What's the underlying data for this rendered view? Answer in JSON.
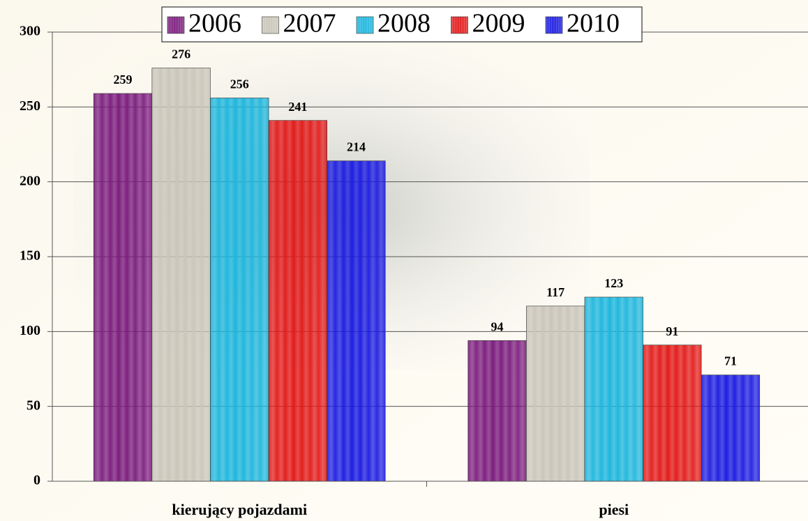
{
  "chart_data": {
    "type": "bar",
    "categories": [
      "kierujący pojazdami",
      "piesi"
    ],
    "series": [
      {
        "name": "2006",
        "color": "#7b1c7e",
        "values": [
          259,
          94
        ]
      },
      {
        "name": "2007",
        "color": "#c9c5b9",
        "values": [
          276,
          117
        ]
      },
      {
        "name": "2008",
        "color": "#1cb6de",
        "values": [
          256,
          123
        ]
      },
      {
        "name": "2009",
        "color": "#e21a1a",
        "values": [
          241,
          91
        ]
      },
      {
        "name": "2010",
        "color": "#1c1ce2",
        "values": [
          214,
          71
        ]
      }
    ],
    "ylim": [
      0,
      300
    ],
    "yticks": [
      0,
      50,
      100,
      150,
      200,
      250,
      300
    ],
    "grid": true,
    "legend": "top"
  }
}
